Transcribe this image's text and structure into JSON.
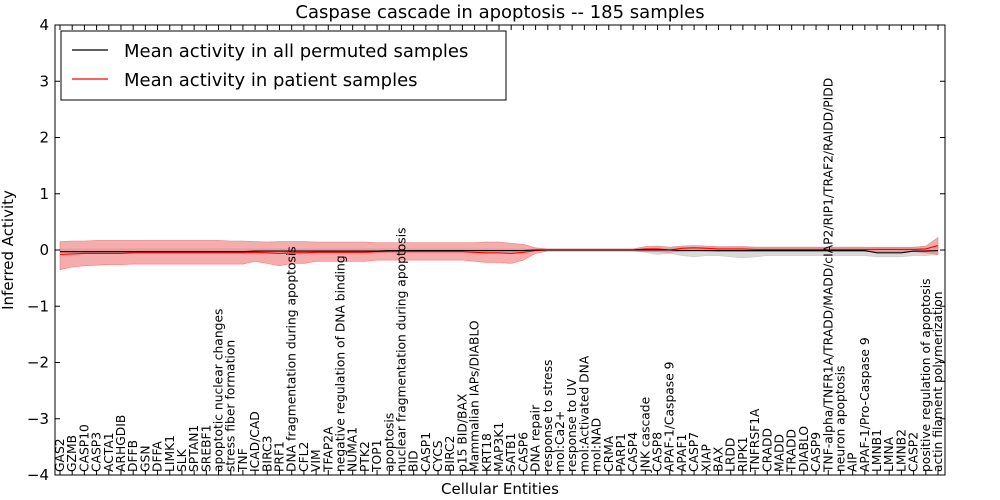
{
  "chart_data": {
    "type": "line",
    "title": "Caspase cascade in apoptosis -- 185 samples",
    "xlabel": "Cellular Entities",
    "ylabel": "Inferred Activity",
    "ylim": [
      -4,
      4
    ],
    "yticks": [
      -4,
      -3,
      -2,
      -1,
      0,
      1,
      2,
      3,
      4
    ],
    "ytick_labels": [
      "−4",
      "−3",
      "−2",
      "−1",
      "0",
      "1",
      "2",
      "3",
      "4"
    ],
    "legend_position": "top-left",
    "colors": {
      "permuted": "#000000",
      "patient": "#ff0000",
      "patient_band": "#f08080",
      "permuted_band": "#cccccc"
    },
    "categories": [
      "GAS2",
      "GZMB",
      "CASP10",
      "CASP3",
      "ACTA1",
      "ARHGDIB",
      "DFFB",
      "GSN",
      "DFFA",
      "LIMK1",
      "SLK",
      "SPTAN1",
      "SREBF1",
      "apoptotic nuclear changes",
      "stress fiber formation",
      "TNF",
      "ICAD/CAD",
      "BIRC3",
      "PRF1",
      "DNA fragmentation during apoptosis",
      "CFL2",
      "VIM",
      "TFAP2A",
      "negative regulation of DNA binding",
      "NUMA1",
      "PTK2",
      "TOP1",
      "apoptosis",
      "nuclear fragmentation during apoptosis",
      "BID",
      "CASP1",
      "CYCS",
      "BIRC2",
      "p15 BID/BAX",
      "Mammalian IAPs/DIABLO",
      "KRT18",
      "MAP3K1",
      "SATB1",
      "CASP6",
      "DNA repair",
      "response to stress",
      "mol:Ca2+",
      "response to UV",
      "mol:Activated DNA",
      "mol:NAD",
      "CRMA",
      "PARP1",
      "CASP4",
      "JNK cascade",
      "CASP8",
      "APAF-1/Caspase 9",
      "APAF1",
      "CASP7",
      "XIAP",
      "BAX",
      "LRDD",
      "RIPK1",
      "TNFRSF1A",
      "CRADD",
      "MADD",
      "TRADD",
      "DIABLO",
      "CASP9",
      "TNF-alpha/TNFR1A/TRADD/MADD/cIAP2/RIP1/TRAF2/RAIDD/PIDD",
      "neuron apoptosis",
      "AIP",
      "APAF-1/Pro-Caspase 9",
      "LMNB1",
      "LMNA",
      "LMNB2",
      "CASP2",
      "positive regulation of apoptosis",
      "actin filament polymerization"
    ],
    "series": [
      {
        "name": "Mean activity in all permuted samples",
        "color": "#000000",
        "values": [
          -0.03,
          -0.03,
          -0.03,
          -0.03,
          -0.03,
          -0.03,
          -0.03,
          -0.03,
          -0.03,
          -0.03,
          -0.03,
          -0.03,
          -0.03,
          -0.03,
          -0.03,
          -0.03,
          -0.02,
          -0.02,
          -0.02,
          -0.02,
          -0.02,
          -0.02,
          -0.02,
          -0.02,
          -0.02,
          -0.02,
          -0.02,
          -0.01,
          -0.01,
          -0.01,
          -0.01,
          -0.01,
          -0.01,
          -0.01,
          -0.01,
          -0.01,
          -0.01,
          -0.01,
          -0.01,
          0.0,
          0.0,
          0.0,
          0.0,
          0.0,
          0.0,
          0.0,
          0.0,
          0.0,
          0.0,
          0.0,
          0.0,
          -0.01,
          -0.01,
          -0.01,
          -0.01,
          -0.01,
          -0.01,
          -0.01,
          -0.01,
          -0.01,
          -0.01,
          -0.01,
          -0.01,
          -0.01,
          -0.01,
          -0.01,
          -0.01,
          -0.05,
          -0.05,
          -0.05,
          -0.02,
          -0.02,
          -0.01
        ],
        "lower": [
          -0.05,
          -0.05,
          -0.05,
          -0.05,
          -0.05,
          -0.05,
          -0.05,
          -0.05,
          -0.05,
          -0.05,
          -0.05,
          -0.05,
          -0.05,
          -0.05,
          -0.05,
          -0.05,
          -0.04,
          -0.04,
          -0.04,
          -0.04,
          -0.04,
          -0.04,
          -0.04,
          -0.04,
          -0.04,
          -0.04,
          -0.04,
          -0.03,
          -0.03,
          -0.03,
          -0.03,
          -0.03,
          -0.03,
          -0.03,
          -0.03,
          -0.03,
          -0.03,
          -0.04,
          -0.03,
          -0.02,
          -0.02,
          -0.02,
          -0.02,
          -0.02,
          -0.02,
          -0.02,
          -0.02,
          -0.02,
          -0.04,
          -0.08,
          -0.06,
          -0.1,
          -0.12,
          -0.1,
          -0.1,
          -0.12,
          -0.14,
          -0.12,
          -0.1,
          -0.1,
          -0.1,
          -0.1,
          -0.1,
          -0.1,
          -0.1,
          -0.1,
          -0.1,
          -0.12,
          -0.12,
          -0.12,
          -0.1,
          -0.1,
          -0.08
        ],
        "upper": [
          0.02,
          0.02,
          0.02,
          0.02,
          0.02,
          0.02,
          0.02,
          0.02,
          0.02,
          0.02,
          0.02,
          0.02,
          0.02,
          0.02,
          0.02,
          0.02,
          0.02,
          0.02,
          0.02,
          0.02,
          0.02,
          0.02,
          0.02,
          0.02,
          0.02,
          0.02,
          0.02,
          0.02,
          0.02,
          0.02,
          0.02,
          0.02,
          0.02,
          0.02,
          0.02,
          0.02,
          0.02,
          0.02,
          0.02,
          0.02,
          0.02,
          0.02,
          0.02,
          0.02,
          0.02,
          0.02,
          0.02,
          0.02,
          0.02,
          0.04,
          0.03,
          0.05,
          0.05,
          0.05,
          0.05,
          0.05,
          0.06,
          0.05,
          0.05,
          0.05,
          0.05,
          0.05,
          0.05,
          0.05,
          0.05,
          0.05,
          0.05,
          0.04,
          0.04,
          0.04,
          0.04,
          0.04,
          0.08
        ]
      },
      {
        "name": "Mean activity in patient samples",
        "color": "#ff0000",
        "values": [
          -0.08,
          -0.07,
          -0.06,
          -0.06,
          -0.06,
          -0.06,
          -0.05,
          -0.05,
          -0.05,
          -0.05,
          -0.05,
          -0.05,
          -0.05,
          -0.05,
          -0.05,
          -0.05,
          -0.04,
          -0.05,
          -0.06,
          -0.05,
          -0.05,
          -0.04,
          -0.04,
          -0.04,
          -0.04,
          -0.04,
          -0.03,
          -0.03,
          -0.03,
          -0.03,
          -0.03,
          -0.03,
          -0.03,
          -0.03,
          -0.04,
          -0.05,
          -0.05,
          -0.06,
          -0.04,
          -0.01,
          0.0,
          0.0,
          0.0,
          0.0,
          0.0,
          0.0,
          0.0,
          0.0,
          0.02,
          0.02,
          0.0,
          0.03,
          0.04,
          0.03,
          0.02,
          0.02,
          0.02,
          0.01,
          0.01,
          0.01,
          0.01,
          0.01,
          0.01,
          0.01,
          0.01,
          0.01,
          0.01,
          0.01,
          0.01,
          0.01,
          0.01,
          0.02,
          0.08
        ],
        "lower": [
          -0.35,
          -0.3,
          -0.28,
          -0.27,
          -0.26,
          -0.26,
          -0.25,
          -0.25,
          -0.25,
          -0.25,
          -0.25,
          -0.25,
          -0.25,
          -0.25,
          -0.25,
          -0.25,
          -0.2,
          -0.24,
          -0.28,
          -0.24,
          -0.24,
          -0.2,
          -0.2,
          -0.2,
          -0.2,
          -0.2,
          -0.18,
          -0.18,
          -0.18,
          -0.18,
          -0.18,
          -0.18,
          -0.18,
          -0.18,
          -0.2,
          -0.22,
          -0.22,
          -0.24,
          -0.18,
          -0.06,
          -0.02,
          -0.02,
          -0.02,
          -0.02,
          -0.02,
          -0.02,
          -0.02,
          -0.02,
          -0.03,
          -0.03,
          -0.04,
          -0.02,
          -0.01,
          -0.02,
          -0.03,
          -0.03,
          -0.03,
          -0.03,
          -0.03,
          -0.03,
          -0.03,
          -0.03,
          -0.03,
          -0.03,
          -0.03,
          -0.03,
          -0.03,
          -0.03,
          -0.03,
          -0.03,
          -0.03,
          -0.05,
          -0.08
        ],
        "upper": [
          0.15,
          0.16,
          0.16,
          0.17,
          0.17,
          0.17,
          0.17,
          0.17,
          0.17,
          0.17,
          0.17,
          0.17,
          0.17,
          0.17,
          0.16,
          0.16,
          0.15,
          0.14,
          0.15,
          0.15,
          0.15,
          0.14,
          0.14,
          0.14,
          0.14,
          0.14,
          0.13,
          0.13,
          0.13,
          0.13,
          0.13,
          0.13,
          0.13,
          0.13,
          0.13,
          0.14,
          0.14,
          0.12,
          0.1,
          0.04,
          0.02,
          0.02,
          0.02,
          0.02,
          0.02,
          0.02,
          0.02,
          0.02,
          0.06,
          0.07,
          0.05,
          0.07,
          0.08,
          0.07,
          0.06,
          0.06,
          0.06,
          0.05,
          0.05,
          0.05,
          0.05,
          0.05,
          0.05,
          0.05,
          0.05,
          0.05,
          0.05,
          0.05,
          0.05,
          0.05,
          0.05,
          0.07,
          0.22
        ]
      }
    ]
  }
}
